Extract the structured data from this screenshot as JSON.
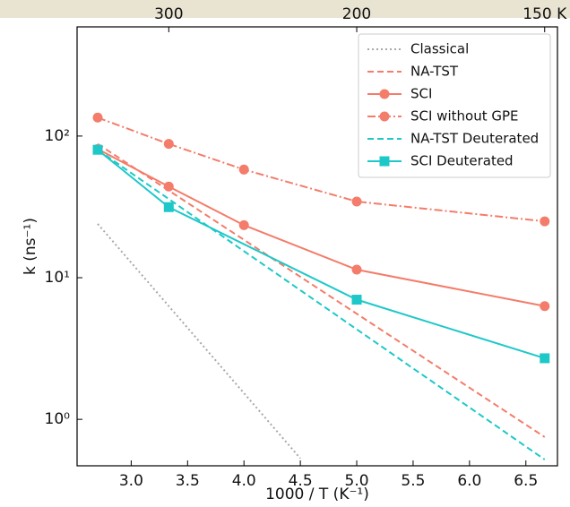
{
  "chart_data": {
    "type": "line",
    "x_label": "1000 / T  (K⁻¹)",
    "y_label": "k (ns⁻¹)",
    "log_y": true,
    "xlim": [
      2.52,
      6.78
    ],
    "ylim": [
      0.47,
      590
    ],
    "xticks": [
      {
        "value": 3,
        "label": "3.0"
      },
      3.5,
      {
        "value": 4,
        "label": "4.0"
      },
      4.5,
      {
        "value": 5,
        "label": "5.0"
      },
      5.5,
      {
        "value": 6,
        "label": "6.0"
      },
      6.5
    ],
    "yticks": [
      {
        "value": 1,
        "label": "10⁰"
      },
      {
        "value": 10,
        "label": "10¹"
      },
      {
        "value": 100,
        "label": "10²"
      }
    ],
    "top_ticks": [
      300,
      200,
      {
        "value": 150,
        "label": "150 K"
      }
    ],
    "legend": "upper right",
    "series": [
      {
        "name": "Classical",
        "color": "#a8a8a8",
        "style": "dotted",
        "x": [
          2.703,
          4.5
        ],
        "values": [
          24,
          0.53
        ]
      },
      {
        "name": "NA-TST",
        "color": "#f47c6a",
        "style": "dashed",
        "x": [
          2.703,
          6.667
        ],
        "values": [
          88,
          0.75
        ]
      },
      {
        "name": "SCI",
        "color": "#f47c6a",
        "style": "solid",
        "marker": "circle",
        "x": [
          2.703,
          3.333,
          4.0,
          5.0,
          6.667
        ],
        "values": [
          81,
          44,
          23.5,
          11.4,
          6.3
        ]
      },
      {
        "name": "SCI without GPE",
        "color": "#f47c6a",
        "style": "dashdot",
        "marker": "circle",
        "x": [
          2.703,
          3.333,
          4.0,
          5.0,
          6.667
        ],
        "values": [
          135,
          88,
          58,
          34.5,
          25
        ]
      },
      {
        "name": "NA-TST Deuterated",
        "color": "#1ec8c8",
        "style": "dashed",
        "x": [
          2.703,
          6.667
        ],
        "values": [
          80,
          0.52
        ]
      },
      {
        "name": "SCI Deuterated",
        "color": "#1ec8c8",
        "style": "solid",
        "marker": "square",
        "x": [
          2.703,
          3.333,
          5.0,
          6.667
        ],
        "values": [
          80,
          31.5,
          7.0,
          2.7
        ]
      }
    ]
  }
}
